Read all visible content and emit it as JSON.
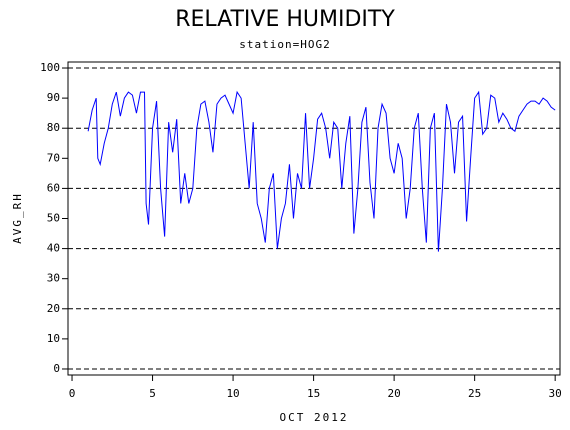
{
  "chart_data": {
    "type": "line",
    "title": "RELATIVE HUMIDITY",
    "subtitle": "station=HOG2",
    "y_label": "AVG_RH",
    "x_label": "OCT 2012",
    "xlim": [
      -0.25,
      30.3
    ],
    "ylim": [
      -2,
      102
    ],
    "xticks": [
      0,
      5,
      10,
      15,
      20,
      25,
      30
    ],
    "yticks": [
      0,
      10,
      20,
      30,
      40,
      50,
      60,
      70,
      80,
      90,
      100
    ],
    "ygrid": [
      0,
      20,
      40,
      60,
      80,
      100
    ],
    "series": [
      {
        "color": "#0000ff",
        "x": [
          1.0,
          1.25,
          1.5,
          1.6,
          1.75,
          2.0,
          2.25,
          2.5,
          2.75,
          3.0,
          3.25,
          3.5,
          3.75,
          4.0,
          4.25,
          4.5,
          4.6,
          4.75,
          5.0,
          5.25,
          5.5,
          5.75,
          6.0,
          6.25,
          6.5,
          6.75,
          7.0,
          7.25,
          7.5,
          7.75,
          8.0,
          8.25,
          8.5,
          8.75,
          9.0,
          9.25,
          9.5,
          9.75,
          10.0,
          10.25,
          10.5,
          10.75,
          11.0,
          11.25,
          11.5,
          11.75,
          12.0,
          12.25,
          12.5,
          12.75,
          13.0,
          13.25,
          13.5,
          13.75,
          14.0,
          14.25,
          14.5,
          14.75,
          15.0,
          15.25,
          15.5,
          15.75,
          16.0,
          16.25,
          16.5,
          16.75,
          17.0,
          17.25,
          17.5,
          17.75,
          18.0,
          18.25,
          18.5,
          18.75,
          19.0,
          19.25,
          19.5,
          19.75,
          20.0,
          20.25,
          20.5,
          20.75,
          21.0,
          21.25,
          21.5,
          21.75,
          22.0,
          22.25,
          22.5,
          22.75,
          23.0,
          23.25,
          23.5,
          23.75,
          24.0,
          24.25,
          24.5,
          24.75,
          25.0,
          25.25,
          25.5,
          25.75,
          26.0,
          26.25,
          26.5,
          26.75,
          27.0,
          27.25,
          27.5,
          27.75,
          28.0,
          28.25,
          28.5,
          28.75,
          29.0,
          29.25,
          29.5,
          29.75,
          30.0
        ],
        "values": [
          79,
          86,
          90,
          70,
          68,
          75,
          80,
          88,
          92,
          84,
          90,
          92,
          91,
          85,
          92,
          92,
          55,
          48,
          80,
          89,
          60,
          44,
          82,
          72,
          83,
          55,
          65,
          55,
          60,
          80,
          88,
          89,
          82,
          72,
          88,
          90,
          91,
          88,
          85,
          92,
          90,
          75,
          60,
          82,
          55,
          50,
          42,
          60,
          65,
          40,
          50,
          55,
          68,
          50,
          65,
          60,
          85,
          60,
          70,
          83,
          85,
          80,
          70,
          82,
          80,
          60,
          75,
          84,
          45,
          60,
          82,
          87,
          62,
          50,
          80,
          88,
          85,
          70,
          65,
          75,
          70,
          50,
          60,
          80,
          85,
          60,
          42,
          80,
          85,
          39,
          60,
          88,
          82,
          65,
          82,
          84,
          49,
          70,
          90,
          92,
          78,
          80,
          91,
          90,
          82,
          85,
          83,
          80,
          79,
          84,
          86,
          88,
          89,
          89,
          88,
          90,
          89,
          87,
          86
        ]
      }
    ]
  }
}
